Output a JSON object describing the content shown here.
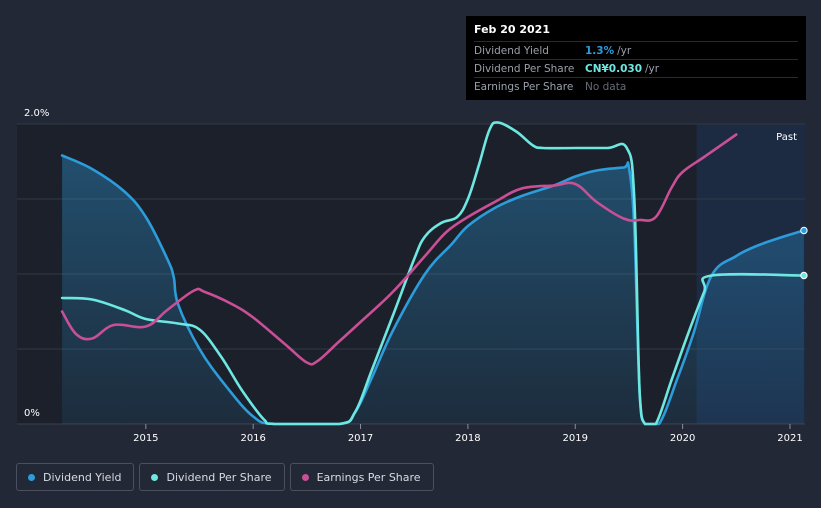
{
  "tooltip": {
    "date": "Feb 20 2021",
    "rows": [
      {
        "name": "Dividend Yield",
        "value": "1.3%",
        "unit": "/yr",
        "color": "#2d9cdb"
      },
      {
        "name": "Dividend Per Share",
        "value": "CN¥0.030",
        "unit": "/yr",
        "color": "#6ee7e0"
      },
      {
        "name": "Earnings Per Share",
        "value": "No data",
        "unit": ""
      }
    ]
  },
  "legend": [
    {
      "label": "Dividend Yield",
      "color": "#2d9cdb"
    },
    {
      "label": "Dividend Per Share",
      "color": "#6ee7e0"
    },
    {
      "label": "Earnings Per Share",
      "color": "#c94f96"
    }
  ],
  "chart_data": {
    "type": "line",
    "y_tick_labels": [
      "2.0%",
      "0%"
    ],
    "x_tick_labels": [
      "2015",
      "2016",
      "2017",
      "2018",
      "2019",
      "2020",
      "2021"
    ],
    "x_ticks": [
      2015,
      2016,
      2017,
      2018,
      2019,
      2020,
      2021
    ],
    "xlim": [
      2013.8,
      2021.14
    ],
    "ylim": [
      0,
      2.0
    ],
    "past_start": 2020.13,
    "past_label": "Past",
    "series": [
      {
        "name": "Dividend Yield",
        "color": "#2d9cdb",
        "fill": true,
        "end_marker": true,
        "points": [
          [
            2014.22,
            1.79
          ],
          [
            2014.5,
            1.7
          ],
          [
            2014.8,
            1.55
          ],
          [
            2015.0,
            1.38
          ],
          [
            2015.2,
            1.1
          ],
          [
            2015.26,
            0.98
          ],
          [
            2015.3,
            0.8
          ],
          [
            2015.5,
            0.5
          ],
          [
            2015.75,
            0.25
          ],
          [
            2016.0,
            0.05
          ],
          [
            2016.2,
            0
          ],
          [
            2016.8,
            0
          ],
          [
            2016.95,
            0.08
          ],
          [
            2017.1,
            0.3
          ],
          [
            2017.3,
            0.62
          ],
          [
            2017.6,
            1.0
          ],
          [
            2017.85,
            1.2
          ],
          [
            2018.0,
            1.32
          ],
          [
            2018.25,
            1.44
          ],
          [
            2018.5,
            1.52
          ],
          [
            2018.8,
            1.59
          ],
          [
            2019.0,
            1.65
          ],
          [
            2019.2,
            1.69
          ],
          [
            2019.45,
            1.71
          ],
          [
            2019.5,
            1.71
          ],
          [
            2019.55,
            1.3
          ],
          [
            2019.6,
            0.2
          ],
          [
            2019.65,
            0
          ],
          [
            2019.78,
            0
          ],
          [
            2019.95,
            0.3
          ],
          [
            2020.1,
            0.6
          ],
          [
            2020.27,
            0.99
          ],
          [
            2020.5,
            1.12
          ],
          [
            2020.7,
            1.19
          ],
          [
            2020.9,
            1.24
          ],
          [
            2021.13,
            1.29
          ]
        ]
      },
      {
        "name": "Dividend Per Share",
        "color": "#6ee7e0",
        "fill": false,
        "end_marker": true,
        "points": [
          [
            2014.22,
            0.84
          ],
          [
            2014.5,
            0.83
          ],
          [
            2014.8,
            0.76
          ],
          [
            2015.0,
            0.7
          ],
          [
            2015.3,
            0.67
          ],
          [
            2015.5,
            0.63
          ],
          [
            2015.7,
            0.45
          ],
          [
            2015.9,
            0.22
          ],
          [
            2016.1,
            0.03
          ],
          [
            2016.2,
            0
          ],
          [
            2016.8,
            0
          ],
          [
            2016.95,
            0.08
          ],
          [
            2017.1,
            0.35
          ],
          [
            2017.3,
            0.72
          ],
          [
            2017.5,
            1.1
          ],
          [
            2017.6,
            1.25
          ],
          [
            2017.75,
            1.34
          ],
          [
            2017.9,
            1.38
          ],
          [
            2018.0,
            1.5
          ],
          [
            2018.1,
            1.72
          ],
          [
            2018.2,
            1.96
          ],
          [
            2018.28,
            2.01
          ],
          [
            2018.45,
            1.95
          ],
          [
            2018.6,
            1.86
          ],
          [
            2018.7,
            1.84
          ],
          [
            2019.0,
            1.84
          ],
          [
            2019.3,
            1.84
          ],
          [
            2019.48,
            1.84
          ],
          [
            2019.55,
            1.5
          ],
          [
            2019.6,
            0.2
          ],
          [
            2019.65,
            0
          ],
          [
            2019.75,
            0
          ],
          [
            2019.9,
            0.3
          ],
          [
            2020.05,
            0.6
          ],
          [
            2020.2,
            0.88
          ],
          [
            2020.27,
            0.99
          ],
          [
            2021.13,
            0.99
          ]
        ]
      },
      {
        "name": "Earnings Per Share",
        "color": "#c94f96",
        "fill": false,
        "end_marker": false,
        "points": [
          [
            2014.22,
            0.75
          ],
          [
            2014.35,
            0.6
          ],
          [
            2014.5,
            0.57
          ],
          [
            2014.7,
            0.66
          ],
          [
            2015.0,
            0.65
          ],
          [
            2015.2,
            0.76
          ],
          [
            2015.45,
            0.89
          ],
          [
            2015.55,
            0.88
          ],
          [
            2015.8,
            0.8
          ],
          [
            2016.0,
            0.71
          ],
          [
            2016.3,
            0.53
          ],
          [
            2016.5,
            0.41
          ],
          [
            2016.6,
            0.42
          ],
          [
            2016.8,
            0.55
          ],
          [
            2017.0,
            0.68
          ],
          [
            2017.3,
            0.88
          ],
          [
            2017.6,
            1.12
          ],
          [
            2017.8,
            1.28
          ],
          [
            2018.0,
            1.38
          ],
          [
            2018.25,
            1.48
          ],
          [
            2018.5,
            1.57
          ],
          [
            2018.8,
            1.59
          ],
          [
            2019.0,
            1.6
          ],
          [
            2019.2,
            1.48
          ],
          [
            2019.45,
            1.37
          ],
          [
            2019.6,
            1.36
          ],
          [
            2019.75,
            1.38
          ],
          [
            2019.9,
            1.58
          ],
          [
            2020.0,
            1.68
          ],
          [
            2020.2,
            1.78
          ],
          [
            2020.4,
            1.88
          ],
          [
            2020.5,
            1.93
          ]
        ]
      }
    ]
  }
}
